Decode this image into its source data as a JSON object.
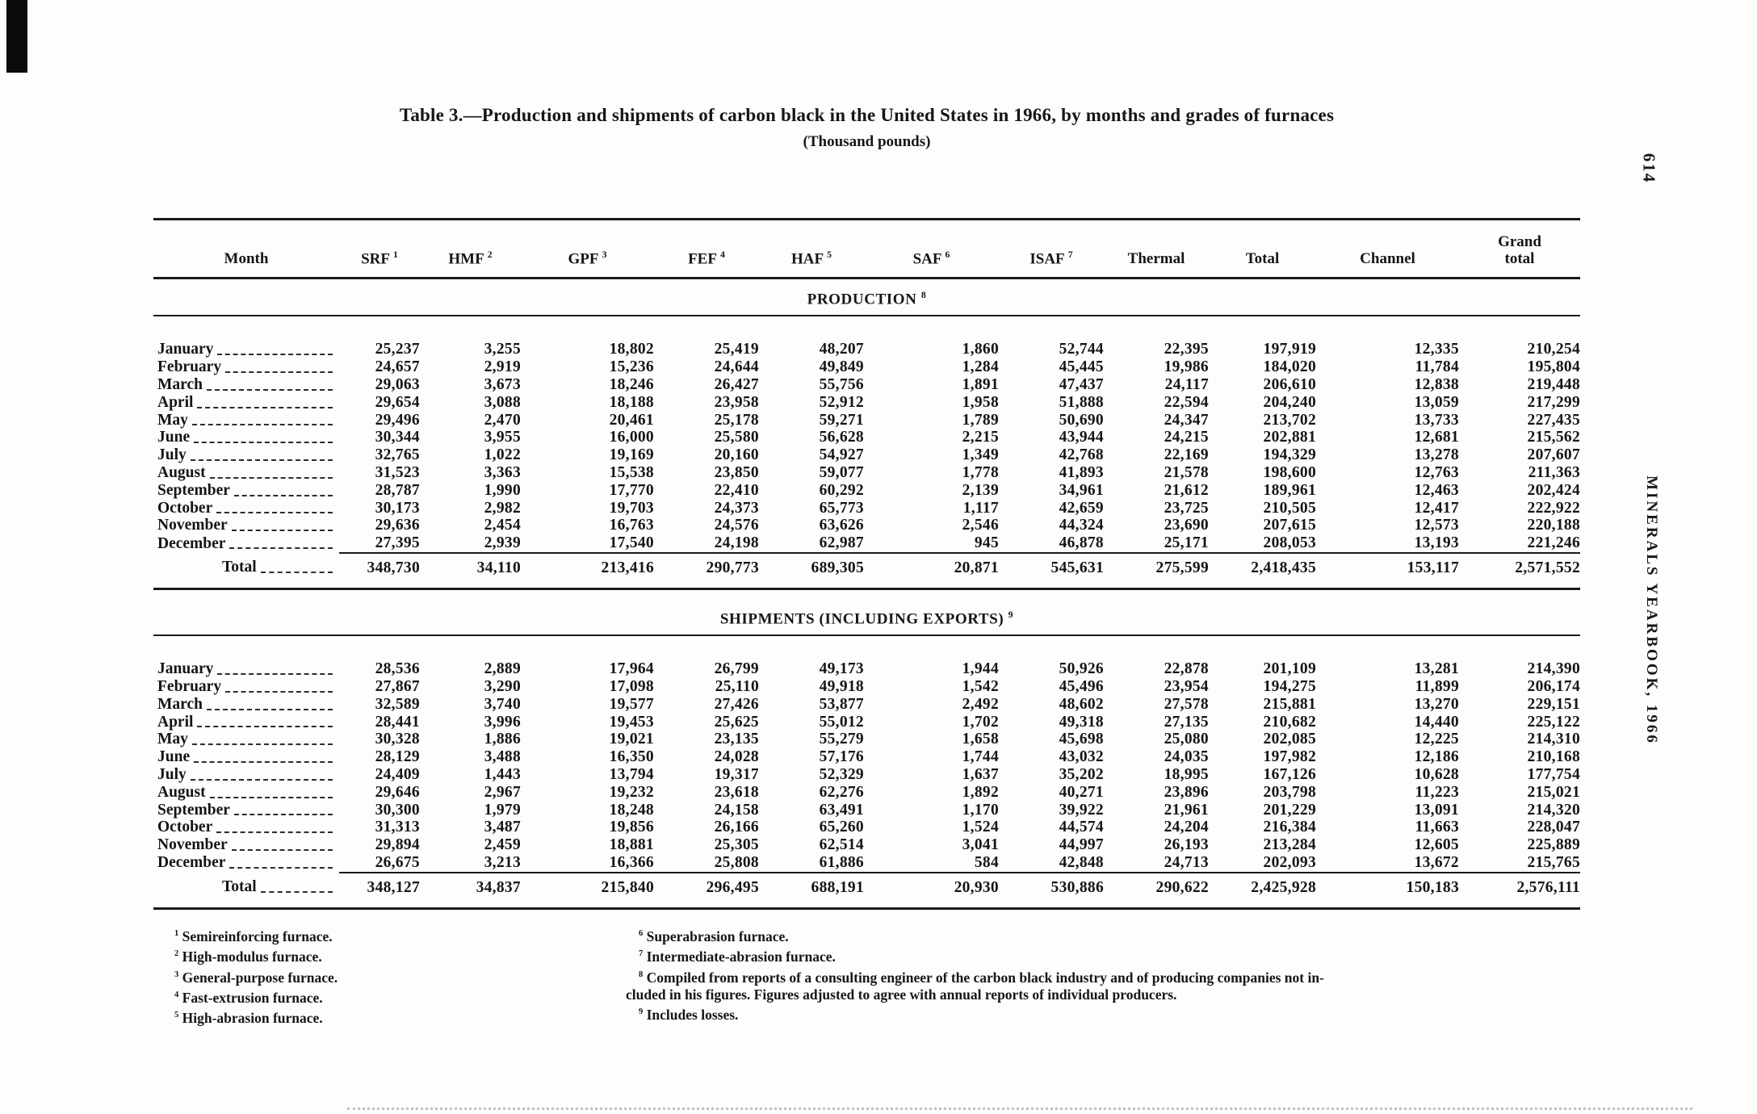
{
  "page": {
    "number": "614",
    "side_text": "MINERALS YEARBOOK, 1966"
  },
  "table": {
    "title": "Table 3.—Production and shipments of carbon black in the United States in 1966, by months and grades of furnaces",
    "subtitle": "(Thousand pounds)",
    "columns": [
      {
        "label": "Month",
        "sup": ""
      },
      {
        "label": "SRF",
        "sup": "1"
      },
      {
        "label": "HMF",
        "sup": "2"
      },
      {
        "label": "GPF",
        "sup": "3"
      },
      {
        "label": "FEF",
        "sup": "4"
      },
      {
        "label": "HAF",
        "sup": "5"
      },
      {
        "label": "SAF",
        "sup": "6"
      },
      {
        "label": "ISAF",
        "sup": "7"
      },
      {
        "label": "Thermal",
        "sup": ""
      },
      {
        "label": "Total",
        "sup": ""
      },
      {
        "label": "Channel",
        "sup": ""
      },
      {
        "label": "Grand total",
        "sup": ""
      }
    ],
    "sections": [
      {
        "heading": "PRODUCTION",
        "sup": "8",
        "rows": [
          {
            "month": "January",
            "values": [
              "25,237",
              "3,255",
              "18,802",
              "25,419",
              "48,207",
              "1,860",
              "52,744",
              "22,395",
              "197,919",
              "12,335",
              "210,254"
            ]
          },
          {
            "month": "February",
            "values": [
              "24,657",
              "2,919",
              "15,236",
              "24,644",
              "49,849",
              "1,284",
              "45,445",
              "19,986",
              "184,020",
              "11,784",
              "195,804"
            ]
          },
          {
            "month": "March",
            "values": [
              "29,063",
              "3,673",
              "18,246",
              "26,427",
              "55,756",
              "1,891",
              "47,437",
              "24,117",
              "206,610",
              "12,838",
              "219,448"
            ]
          },
          {
            "month": "April",
            "values": [
              "29,654",
              "3,088",
              "18,188",
              "23,958",
              "52,912",
              "1,958",
              "51,888",
              "22,594",
              "204,240",
              "13,059",
              "217,299"
            ]
          },
          {
            "month": "May",
            "values": [
              "29,496",
              "2,470",
              "20,461",
              "25,178",
              "59,271",
              "1,789",
              "50,690",
              "24,347",
              "213,702",
              "13,733",
              "227,435"
            ]
          },
          {
            "month": "June",
            "values": [
              "30,344",
              "3,955",
              "16,000",
              "25,580",
              "56,628",
              "2,215",
              "43,944",
              "24,215",
              "202,881",
              "12,681",
              "215,562"
            ]
          },
          {
            "month": "July",
            "values": [
              "32,765",
              "1,022",
              "19,169",
              "20,160",
              "54,927",
              "1,349",
              "42,768",
              "22,169",
              "194,329",
              "13,278",
              "207,607"
            ]
          },
          {
            "month": "August",
            "values": [
              "31,523",
              "3,363",
              "15,538",
              "23,850",
              "59,077",
              "1,778",
              "41,893",
              "21,578",
              "198,600",
              "12,763",
              "211,363"
            ]
          },
          {
            "month": "September",
            "values": [
              "28,787",
              "1,990",
              "17,770",
              "22,410",
              "60,292",
              "2,139",
              "34,961",
              "21,612",
              "189,961",
              "12,463",
              "202,424"
            ]
          },
          {
            "month": "October",
            "values": [
              "30,173",
              "2,982",
              "19,703",
              "24,373",
              "65,773",
              "1,117",
              "42,659",
              "23,725",
              "210,505",
              "12,417",
              "222,922"
            ]
          },
          {
            "month": "November",
            "values": [
              "29,636",
              "2,454",
              "16,763",
              "24,576",
              "63,626",
              "2,546",
              "44,324",
              "23,690",
              "207,615",
              "12,573",
              "220,188"
            ]
          },
          {
            "month": "December",
            "values": [
              "27,395",
              "2,939",
              "17,540",
              "24,198",
              "62,987",
              "945",
              "46,878",
              "25,171",
              "208,053",
              "13,193",
              "221,246"
            ]
          }
        ],
        "total": {
          "label": "Total",
          "values": [
            "348,730",
            "34,110",
            "213,416",
            "290,773",
            "689,305",
            "20,871",
            "545,631",
            "275,599",
            "2,418,435",
            "153,117",
            "2,571,552"
          ]
        }
      },
      {
        "heading": "SHIPMENTS (INCLUDING EXPORTS)",
        "sup": "9",
        "rows": [
          {
            "month": "January",
            "values": [
              "28,536",
              "2,889",
              "17,964",
              "26,799",
              "49,173",
              "1,944",
              "50,926",
              "22,878",
              "201,109",
              "13,281",
              "214,390"
            ]
          },
          {
            "month": "February",
            "values": [
              "27,867",
              "3,290",
              "17,098",
              "25,110",
              "49,918",
              "1,542",
              "45,496",
              "23,954",
              "194,275",
              "11,899",
              "206,174"
            ]
          },
          {
            "month": "March",
            "values": [
              "32,589",
              "3,740",
              "19,577",
              "27,426",
              "53,877",
              "2,492",
              "48,602",
              "27,578",
              "215,881",
              "13,270",
              "229,151"
            ]
          },
          {
            "month": "April",
            "values": [
              "28,441",
              "3,996",
              "19,453",
              "25,625",
              "55,012",
              "1,702",
              "49,318",
              "27,135",
              "210,682",
              "14,440",
              "225,122"
            ]
          },
          {
            "month": "May",
            "values": [
              "30,328",
              "1,886",
              "19,021",
              "23,135",
              "55,279",
              "1,658",
              "45,698",
              "25,080",
              "202,085",
              "12,225",
              "214,310"
            ]
          },
          {
            "month": "June",
            "values": [
              "28,129",
              "3,488",
              "16,350",
              "24,028",
              "57,176",
              "1,744",
              "43,032",
              "24,035",
              "197,982",
              "12,186",
              "210,168"
            ]
          },
          {
            "month": "July",
            "values": [
              "24,409",
              "1,443",
              "13,794",
              "19,317",
              "52,329",
              "1,637",
              "35,202",
              "18,995",
              "167,126",
              "10,628",
              "177,754"
            ]
          },
          {
            "month": "August",
            "values": [
              "29,646",
              "2,967",
              "19,232",
              "23,618",
              "62,276",
              "1,892",
              "40,271",
              "23,896",
              "203,798",
              "11,223",
              "215,021"
            ]
          },
          {
            "month": "September",
            "values": [
              "30,300",
              "1,979",
              "18,248",
              "24,158",
              "63,491",
              "1,170",
              "39,922",
              "21,961",
              "201,229",
              "13,091",
              "214,320"
            ]
          },
          {
            "month": "October",
            "values": [
              "31,313",
              "3,487",
              "19,856",
              "26,166",
              "65,260",
              "1,524",
              "44,574",
              "24,204",
              "216,384",
              "11,663",
              "228,047"
            ]
          },
          {
            "month": "November",
            "values": [
              "29,894",
              "2,459",
              "18,881",
              "25,305",
              "62,514",
              "3,041",
              "44,997",
              "26,193",
              "213,284",
              "12,605",
              "225,889"
            ]
          },
          {
            "month": "December",
            "values": [
              "26,675",
              "3,213",
              "16,366",
              "25,808",
              "61,886",
              "584",
              "42,848",
              "24,713",
              "202,093",
              "13,672",
              "215,765"
            ]
          }
        ],
        "total": {
          "label": "Total",
          "values": [
            "348,127",
            "34,837",
            "215,840",
            "296,495",
            "688,191",
            "20,930",
            "530,886",
            "290,622",
            "2,425,928",
            "150,183",
            "2,576,111"
          ]
        }
      }
    ],
    "footnotes": {
      "left": [
        {
          "sup": "1",
          "text": "Semireinforcing furnace."
        },
        {
          "sup": "2",
          "text": "High-modulus furnace."
        },
        {
          "sup": "3",
          "text": "General-purpose furnace."
        },
        {
          "sup": "4",
          "text": "Fast-extrusion furnace."
        },
        {
          "sup": "5",
          "text": "High-abrasion furnace."
        }
      ],
      "right": [
        {
          "sup": "6",
          "text": "Superabrasion furnace."
        },
        {
          "sup": "7",
          "text": "Intermediate-abrasion furnace."
        },
        {
          "sup": "8",
          "text": "Compiled from reports of a consulting engineer of the carbon black industry and of producing companies not in-",
          "text2": "cluded in his figures. Figures adjusted to agree with annual reports of individual producers."
        },
        {
          "sup": "9",
          "text": "Includes losses."
        }
      ]
    }
  }
}
